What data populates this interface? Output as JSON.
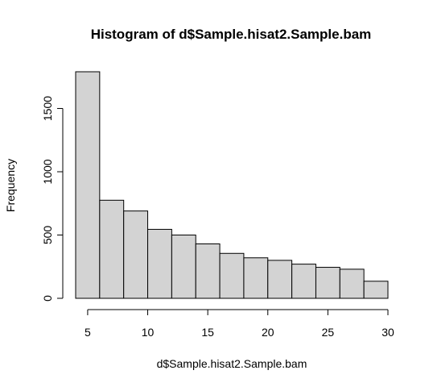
{
  "chart_data": {
    "type": "bar",
    "title": "Histogram of d$Sample.hisat2.Sample.bam",
    "xlabel": "d$Sample.hisat2.Sample.bam",
    "ylabel": "Frequency",
    "bin_edges": [
      4,
      6,
      8,
      10,
      12,
      14,
      16,
      18,
      20,
      22,
      24,
      26,
      28,
      30
    ],
    "values": [
      1790,
      775,
      690,
      545,
      500,
      430,
      355,
      320,
      300,
      270,
      245,
      230,
      135
    ],
    "xlim": [
      4,
      30
    ],
    "ylim": [
      0,
      1790
    ],
    "x_ticks": [
      5,
      10,
      15,
      20,
      25,
      30
    ],
    "y_ticks": [
      0,
      500,
      1000,
      1500
    ],
    "bar_color": "#d3d3d3",
    "grid": false
  }
}
